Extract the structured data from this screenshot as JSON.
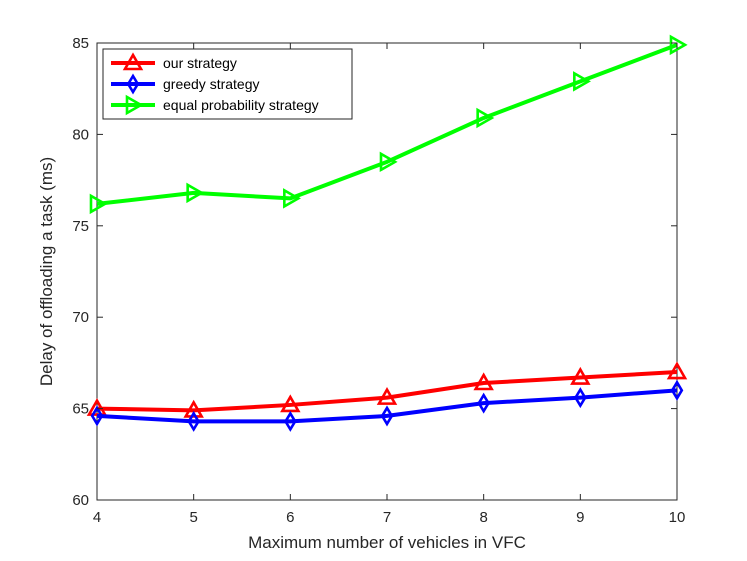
{
  "chart_data": {
    "type": "line",
    "title": "",
    "xlabel": "Maximum number of vehicles in VFC",
    "ylabel": "Delay of offloading a task (ms)",
    "x": [
      4,
      5,
      6,
      7,
      8,
      9,
      10
    ],
    "xlim": [
      4,
      10
    ],
    "ylim": [
      60,
      85
    ],
    "xticks": [
      4,
      5,
      6,
      7,
      8,
      9,
      10
    ],
    "yticks": [
      60,
      65,
      70,
      75,
      80,
      85
    ],
    "legend_position": "top-left",
    "grid": false,
    "series": [
      {
        "name": "our strategy",
        "color": "#ff0000",
        "marker": "triangle-up",
        "values": [
          65.0,
          64.9,
          65.2,
          65.6,
          66.4,
          66.7,
          67.0
        ]
      },
      {
        "name": "greedy strategy",
        "color": "#0000ff",
        "marker": "diamond",
        "values": [
          64.6,
          64.3,
          64.3,
          64.6,
          65.3,
          65.6,
          66.0
        ]
      },
      {
        "name": "equal probability strategy",
        "color": "#00ff00",
        "marker": "triangle-right",
        "values": [
          76.2,
          76.8,
          76.5,
          78.5,
          80.9,
          82.9,
          84.9
        ]
      }
    ]
  }
}
